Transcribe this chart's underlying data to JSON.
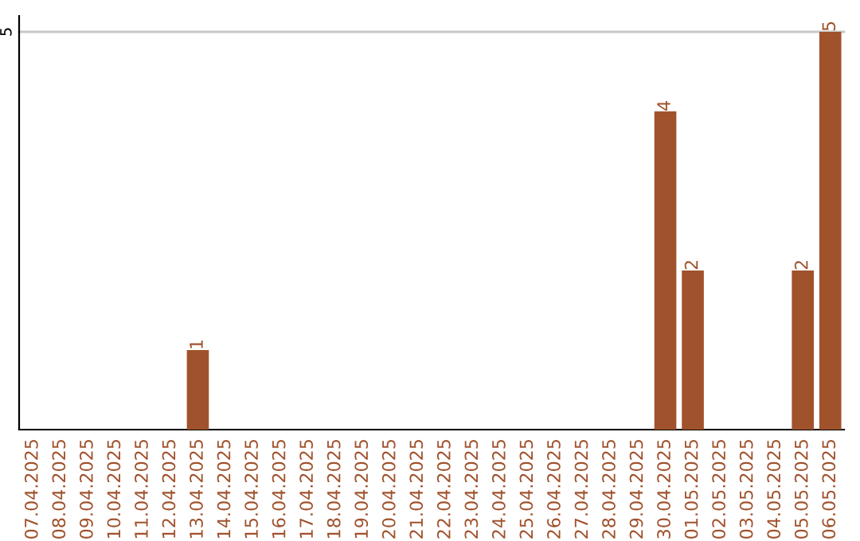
{
  "chart_data": {
    "type": "bar",
    "categories": [
      "07.04.2025",
      "08.04.2025",
      "09.04.2025",
      "10.04.2025",
      "11.04.2025",
      "12.04.2025",
      "13.04.2025",
      "14.04.2025",
      "15.04.2025",
      "16.04.2025",
      "17.04.2025",
      "18.04.2025",
      "19.04.2025",
      "20.04.2025",
      "21.04.2025",
      "22.04.2025",
      "23.04.2025",
      "24.04.2025",
      "25.04.2025",
      "26.04.2025",
      "27.04.2025",
      "28.04.2025",
      "29.04.2025",
      "30.04.2025",
      "01.05.2025",
      "02.05.2025",
      "03.05.2025",
      "04.05.2025",
      "05.05.2025",
      "06.05.2025"
    ],
    "values": [
      0,
      0,
      0,
      0,
      0,
      0,
      1,
      0,
      0,
      0,
      0,
      0,
      0,
      0,
      0,
      0,
      0,
      0,
      0,
      0,
      0,
      0,
      0,
      4,
      2,
      0,
      0,
      0,
      2,
      5
    ],
    "value_labels": [
      null,
      null,
      null,
      null,
      null,
      null,
      "1",
      null,
      null,
      null,
      null,
      null,
      null,
      null,
      null,
      null,
      null,
      null,
      null,
      null,
      null,
      null,
      null,
      "4",
      "2",
      null,
      null,
      null,
      "2",
      "5"
    ],
    "color": "#a0522d",
    "ylim": [
      0,
      5.2
    ],
    "yticks": [
      5
    ],
    "grid": "y"
  }
}
